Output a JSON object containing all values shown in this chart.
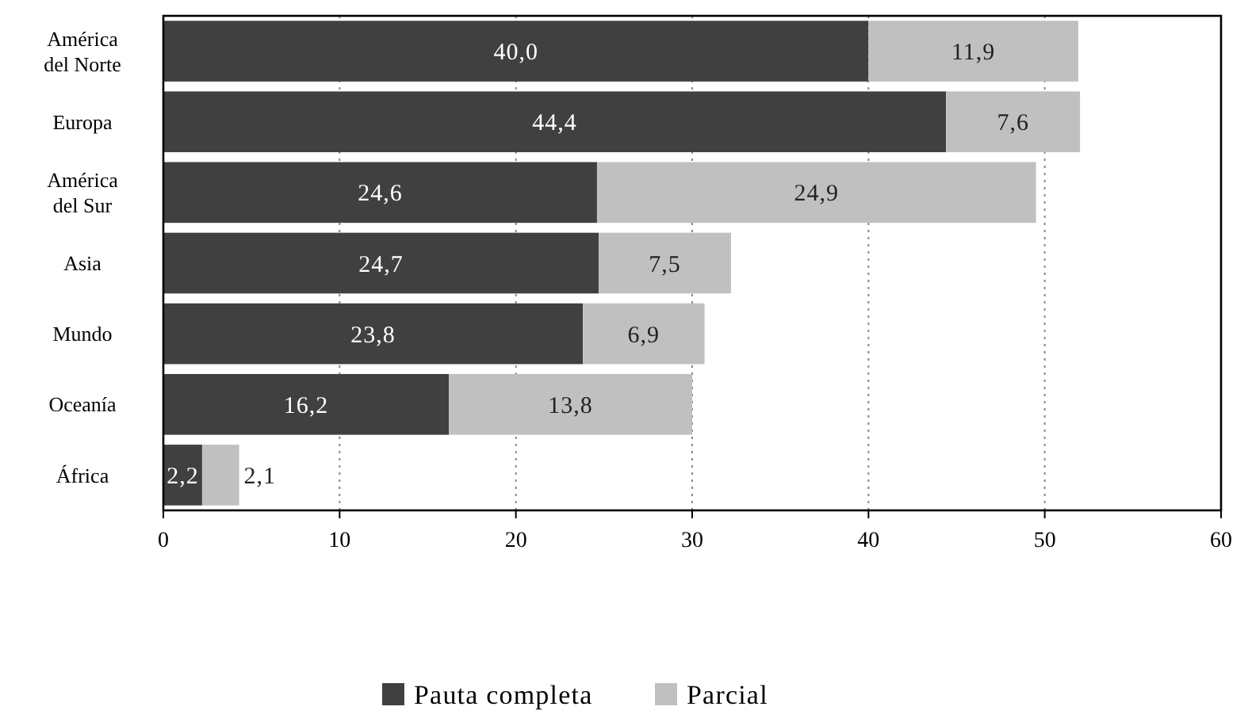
{
  "chart_data": {
    "type": "bar",
    "orientation": "horizontal",
    "stacked": true,
    "categories": [
      "América del Norte",
      "Europa",
      "América del Sur",
      "Asia",
      "Mundo",
      "Oceanía",
      "África"
    ],
    "series": [
      {
        "name": "Pauta completa",
        "color": "#404040",
        "values": [
          40.0,
          44.4,
          24.6,
          24.7,
          23.8,
          16.2,
          2.2
        ],
        "value_labels": [
          "40,0",
          "44,4",
          "24,6",
          "24,7",
          "23,8",
          "16,2",
          "2,2"
        ]
      },
      {
        "name": "Parcial",
        "color": "#c0c0c0",
        "values": [
          11.9,
          7.6,
          24.9,
          7.5,
          6.9,
          13.8,
          2.1
        ],
        "value_labels": [
          "11,9",
          "7,6",
          "24,9",
          "7,5",
          "6,9",
          "13,8",
          "2,1"
        ]
      }
    ],
    "xlim": [
      0,
      60
    ],
    "xticks": [
      0,
      10,
      20,
      30,
      40,
      50,
      60
    ],
    "grid": "x",
    "legend": "bottom"
  }
}
